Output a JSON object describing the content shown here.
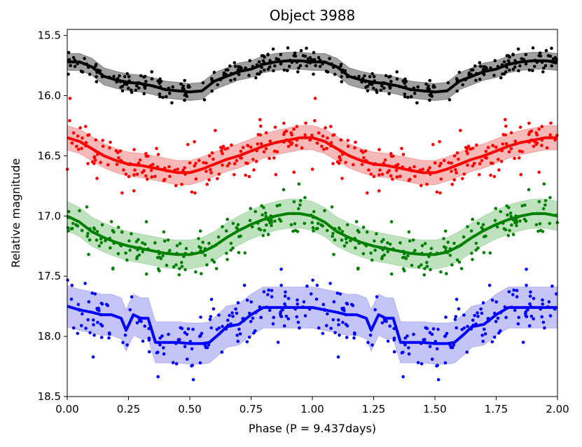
{
  "chart_data": {
    "type": "scatter",
    "title": "Object 3988",
    "xlabel": "Phase (P = 9.437days)",
    "ylabel": "Relative magnitude",
    "xlim": [
      0.0,
      2.0
    ],
    "ylim": [
      18.5,
      15.45
    ],
    "y_inverted": true,
    "grid": false,
    "xticks": [
      "0.00",
      "0.25",
      "0.50",
      "0.75",
      "1.00",
      "1.25",
      "1.50",
      "1.75",
      "2.00"
    ],
    "yticks": [
      "15.5",
      "16.0",
      "16.5",
      "17.0",
      "17.5",
      "18.0",
      "18.5"
    ],
    "series": [
      {
        "color": "#000000",
        "band_color": "#808080",
        "trend": [
          [
            0.0,
            15.72
          ],
          [
            0.05,
            15.72
          ],
          [
            0.1,
            15.76
          ],
          [
            0.15,
            15.84
          ],
          [
            0.2,
            15.87
          ],
          [
            0.25,
            15.89
          ],
          [
            0.3,
            15.9
          ],
          [
            0.35,
            15.92
          ],
          [
            0.4,
            15.95
          ],
          [
            0.45,
            15.96
          ],
          [
            0.5,
            15.97
          ],
          [
            0.55,
            15.96
          ],
          [
            0.6,
            15.88
          ],
          [
            0.65,
            15.84
          ],
          [
            0.7,
            15.8
          ],
          [
            0.75,
            15.78
          ],
          [
            0.8,
            15.74
          ],
          [
            0.85,
            15.72
          ],
          [
            0.9,
            15.71
          ],
          [
            0.95,
            15.71
          ],
          [
            1.0,
            15.72
          ]
        ],
        "band_half_width": 0.07,
        "scatter": 0.06
      },
      {
        "color": "#ff0000",
        "band_color": "#f4a0a0",
        "trend": [
          [
            0.0,
            16.35
          ],
          [
            0.05,
            16.38
          ],
          [
            0.1,
            16.44
          ],
          [
            0.15,
            16.5
          ],
          [
            0.2,
            16.54
          ],
          [
            0.25,
            16.57
          ],
          [
            0.3,
            16.58
          ],
          [
            0.35,
            16.6
          ],
          [
            0.4,
            16.62
          ],
          [
            0.45,
            16.64
          ],
          [
            0.5,
            16.64
          ],
          [
            0.55,
            16.61
          ],
          [
            0.6,
            16.57
          ],
          [
            0.65,
            16.53
          ],
          [
            0.7,
            16.5
          ],
          [
            0.75,
            16.46
          ],
          [
            0.8,
            16.42
          ],
          [
            0.85,
            16.39
          ],
          [
            0.9,
            16.37
          ],
          [
            0.95,
            16.35
          ],
          [
            1.0,
            16.35
          ]
        ],
        "band_half_width": 0.1,
        "scatter": 0.12
      },
      {
        "color": "#008000",
        "band_color": "#a8d8a8",
        "trend": [
          [
            0.0,
            17.0
          ],
          [
            0.05,
            17.05
          ],
          [
            0.1,
            17.13
          ],
          [
            0.15,
            17.18
          ],
          [
            0.2,
            17.22
          ],
          [
            0.25,
            17.25
          ],
          [
            0.3,
            17.27
          ],
          [
            0.35,
            17.29
          ],
          [
            0.4,
            17.31
          ],
          [
            0.45,
            17.32
          ],
          [
            0.5,
            17.32
          ],
          [
            0.55,
            17.3
          ],
          [
            0.6,
            17.25
          ],
          [
            0.65,
            17.18
          ],
          [
            0.7,
            17.12
          ],
          [
            0.75,
            17.07
          ],
          [
            0.8,
            17.03
          ],
          [
            0.85,
            17.0
          ],
          [
            0.9,
            16.98
          ],
          [
            0.95,
            16.98
          ],
          [
            1.0,
            17.0
          ]
        ],
        "band_half_width": 0.12,
        "scatter": 0.12
      },
      {
        "color": "#0000ff",
        "band_color": "#b0b0f4",
        "trend": [
          [
            0.0,
            17.75
          ],
          [
            0.05,
            17.78
          ],
          [
            0.1,
            17.8
          ],
          [
            0.14,
            17.82
          ],
          [
            0.18,
            17.82
          ],
          [
            0.22,
            17.85
          ],
          [
            0.24,
            17.95
          ],
          [
            0.27,
            17.82
          ],
          [
            0.3,
            17.85
          ],
          [
            0.33,
            17.85
          ],
          [
            0.36,
            18.05
          ],
          [
            0.45,
            18.05
          ],
          [
            0.5,
            18.06
          ],
          [
            0.55,
            18.06
          ],
          [
            0.58,
            18.05
          ],
          [
            0.62,
            17.98
          ],
          [
            0.65,
            17.92
          ],
          [
            0.7,
            17.9
          ],
          [
            0.75,
            17.82
          ],
          [
            0.8,
            17.76
          ],
          [
            0.85,
            17.76
          ],
          [
            0.9,
            17.76
          ],
          [
            0.95,
            17.76
          ],
          [
            1.0,
            17.76
          ]
        ],
        "band_half_width": 0.17,
        "scatter": 0.15
      }
    ]
  }
}
